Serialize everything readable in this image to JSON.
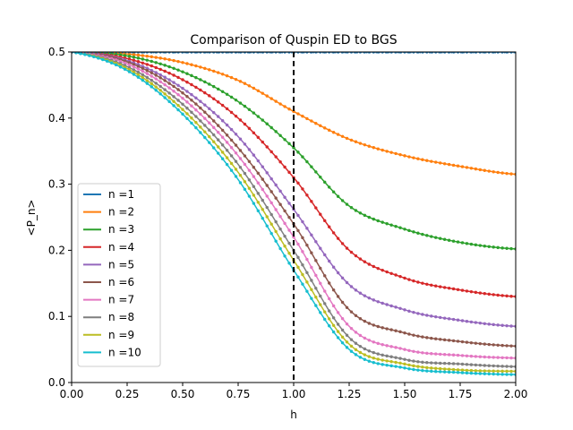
{
  "chart_data": {
    "type": "line",
    "title": "Comparison of Quspin ED to BGS",
    "xlabel": "h",
    "ylabel": "<P_n>",
    "xlim": [
      0.0,
      2.0
    ],
    "ylim": [
      0.0,
      0.5
    ],
    "xticks": [
      "0.00",
      "0.25",
      "0.50",
      "0.75",
      "1.00",
      "1.25",
      "1.50",
      "1.75",
      "2.00"
    ],
    "yticks": [
      "0.0",
      "0.1",
      "0.2",
      "0.3",
      "0.4",
      "0.5"
    ],
    "xtick_values": [
      0,
      0.25,
      0.5,
      0.75,
      1.0,
      1.25,
      1.5,
      1.75,
      2.0
    ],
    "ytick_values": [
      0,
      0.1,
      0.2,
      0.3,
      0.4,
      0.5
    ],
    "grid": false,
    "legend_position": "lower-left",
    "vline": {
      "x": 1.0,
      "style": "dashed",
      "color": "#000000"
    },
    "x": [
      0.0,
      0.25,
      0.5,
      0.75,
      1.0,
      1.25,
      1.5,
      1.75,
      2.0
    ],
    "series": [
      {
        "name": "n =1",
        "color": "#1f77b4",
        "values": [
          0.5,
          0.5,
          0.5,
          0.5,
          0.5,
          0.5,
          0.5,
          0.5,
          0.5
        ]
      },
      {
        "name": "n =2",
        "color": "#ff7f0e",
        "values": [
          0.5,
          0.497,
          0.484,
          0.457,
          0.41,
          0.368,
          0.343,
          0.327,
          0.315
        ]
      },
      {
        "name": "n =3",
        "color": "#2ca02c",
        "values": [
          0.5,
          0.494,
          0.47,
          0.425,
          0.355,
          0.267,
          0.232,
          0.212,
          0.202
        ]
      },
      {
        "name": "n =4",
        "color": "#d62728",
        "values": [
          0.5,
          0.49,
          0.458,
          0.4,
          0.31,
          0.2,
          0.158,
          0.14,
          0.13
        ]
      },
      {
        "name": "n =5",
        "color": "#9467bd",
        "values": [
          0.5,
          0.487,
          0.445,
          0.372,
          0.262,
          0.148,
          0.11,
          0.094,
          0.085
        ]
      },
      {
        "name": "n =6",
        "color": "#8c564b",
        "values": [
          0.5,
          0.485,
          0.438,
          0.355,
          0.24,
          0.11,
          0.075,
          0.062,
          0.055
        ]
      },
      {
        "name": "n =7",
        "color": "#e377c2",
        "values": [
          0.5,
          0.482,
          0.43,
          0.343,
          0.22,
          0.085,
          0.05,
          0.041,
          0.037
        ]
      },
      {
        "name": "n =8",
        "color": "#7f7f7f",
        "values": [
          0.5,
          0.478,
          0.421,
          0.33,
          0.2,
          0.068,
          0.035,
          0.028,
          0.024
        ]
      },
      {
        "name": "n =9",
        "color": "#bcbd22",
        "values": [
          0.5,
          0.475,
          0.413,
          0.318,
          0.185,
          0.058,
          0.028,
          0.019,
          0.017
        ]
      },
      {
        "name": "n =10",
        "color": "#17becf",
        "values": [
          0.5,
          0.472,
          0.406,
          0.307,
          0.17,
          0.05,
          0.022,
          0.015,
          0.012
        ]
      }
    ]
  }
}
